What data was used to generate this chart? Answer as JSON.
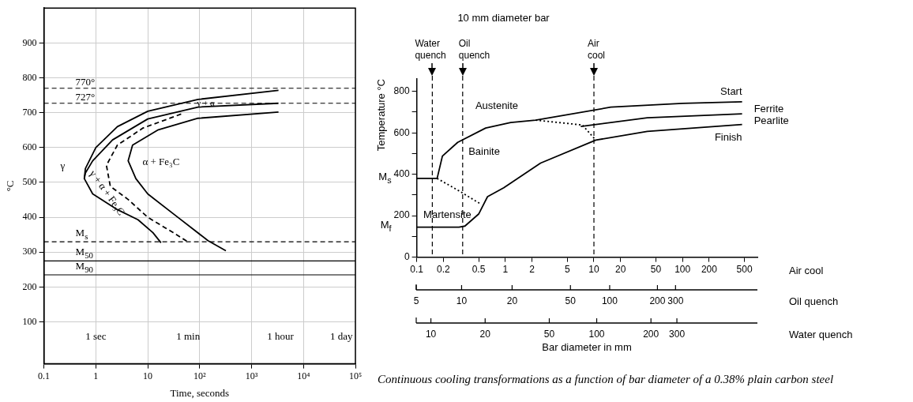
{
  "chart_data": [
    {
      "type": "line",
      "xlabel": "Time, seconds",
      "ylabel": "°C",
      "log": "x",
      "xlim": [
        0.1,
        100000
      ],
      "ylim": [
        -20,
        1000
      ],
      "xticks": [
        0.1,
        1,
        10,
        {
          "value": 100,
          "label": "10²"
        },
        {
          "value": 1000,
          "label": "10³"
        },
        {
          "value": 10000,
          "label": "10⁴"
        },
        {
          "value": 100000,
          "label": "10⁵"
        }
      ],
      "yticks": [
        100,
        200,
        300,
        400,
        500,
        600,
        700,
        800,
        900
      ],
      "grid": true,
      "legend": false,
      "series": [
        {
          "color": "#000000",
          "x": [
            3300,
            93,
            10,
            2.6,
            1,
            0.63,
            0.6,
            0.87,
            2.6,
            6.5,
            12.6,
            18
          ],
          "values": [
            764,
            738,
            704,
            660,
            600,
            540,
            511,
            467,
            422,
            393,
            356,
            327
          ]
        },
        {
          "color": "#000000",
          "x": [
            3300,
            93,
            10,
            2.1,
            0.87,
            0.63,
            0.6
          ],
          "values": [
            727,
            716,
            682,
            622,
            562,
            527,
            511
          ]
        },
        {
          "color": "#000000",
          "line_style": "dashed",
          "x": [
            44,
            8.1,
            2.6,
            1.6,
            1.9,
            4.2,
            10,
            31,
            60
          ],
          "values": [
            696,
            656,
            607,
            549,
            489,
            451,
            400,
            356,
            329
          ]
        },
        {
          "color": "#000000",
          "x": [
            3300,
            93,
            16,
            5.1,
            4.2,
            5.9,
            10,
            38,
            145,
            320
          ],
          "values": [
            702,
            684,
            651,
            607,
            562,
            511,
            467,
            400,
            333,
            304
          ]
        }
      ],
      "ref_lines": [
        {
          "axis": "y",
          "value": 770,
          "label": "770°",
          "line_style": "dashed"
        },
        {
          "axis": "y",
          "value": 727,
          "label": "727°",
          "line_style": "dashed"
        },
        {
          "axis": "y",
          "value": 330,
          "label": "M$_{s}$",
          "line_style": "dashed"
        },
        {
          "axis": "y",
          "value": 275,
          "label": "M$_{50}$",
          "line_style": "solid"
        },
        {
          "axis": "y",
          "value": 235,
          "label": "M$_{90}$",
          "line_style": "solid"
        }
      ],
      "annotations": [
        "γ",
        "γ + α",
        "α + Fe₃C",
        "γ + α + Fe₃C",
        "1 sec",
        "1 min",
        "1 hour",
        "1 day"
      ]
    },
    {
      "type": "line",
      "ylabel": "Temperature °C",
      "xlabel": "Air cool",
      "log": "x",
      "legend": false,
      "xlim": [
        0.1,
        700
      ],
      "xticks": [
        0.1,
        0.2,
        0.5,
        1,
        2,
        5,
        10,
        20,
        50,
        100,
        200,
        500
      ],
      "ylim": [
        0,
        860
      ],
      "yticks": [
        0,
        {
          "value": 100,
          "label": null
        },
        200,
        {
          "value": 300,
          "label": null
        },
        400,
        {
          "value": 500,
          "label": null
        },
        600,
        {
          "value": 700,
          "label": null
        },
        800
      ],
      "series": [
        {
          "name": "Start",
          "color": "#000000",
          "x": [
            0.1,
            0.17,
            0.195,
            0.29,
            0.6,
            1.15,
            2.2,
            15.5,
            100,
            470
          ],
          "values": [
            380,
            380,
            488,
            554,
            623,
            650,
            661,
            724,
            742,
            750
          ]
        },
        {
          "color": "#000000",
          "x": [
            7.1,
            40,
            470
          ],
          "values": [
            631,
            673,
            692
          ]
        },
        {
          "name": "Finish",
          "color": "#000000",
          "x": [
            0.1,
            0.3,
            0.35,
            0.5,
            0.63,
            0.96,
            2.5,
            10.5,
            40,
            470
          ],
          "values": [
            145,
            145,
            150,
            208,
            292,
            335,
            454,
            565,
            607,
            640
          ]
        },
        {
          "color": "#000000",
          "line_style": "dotted",
          "x": [
            0.17,
            0.3,
            0.52
          ],
          "values": [
            380,
            320,
            258
          ]
        },
        {
          "color": "#000000",
          "line_style": "dotted",
          "x": [
            2.2,
            7.4,
            10.5
          ],
          "values": [
            661,
            638,
            565
          ]
        }
      ],
      "ref_lines": [
        {
          "axis": "x",
          "value": 0.15,
          "label": "Water quench",
          "line_style": "dashed"
        },
        {
          "axis": "x",
          "value": 0.33,
          "label": "Oil quench",
          "line_style": "dashed"
        },
        {
          "axis": "x",
          "value": 10,
          "label": "Air cool",
          "line_style": "dashed"
        }
      ],
      "annotations": [
        "10 mm diameter bar",
        "Austenite",
        "Bainite",
        "Martensite",
        "Ferrite",
        "Pearlite",
        "M$_{s}$",
        "M$_{f}$"
      ]
    },
    {
      "type": "other",
      "annotations": [
        "5",
        "10",
        "20",
        "50",
        "100",
        "200",
        "300",
        "Oil quench"
      ]
    },
    {
      "type": "other",
      "annotations": [
        "10",
        "20",
        "50",
        "100",
        "200",
        "300",
        "Water quench",
        "Bar diameter in mm",
        "Continuous cooling transformations as a function of bar diameter of a 0.38% plain carbon steel"
      ]
    }
  ]
}
